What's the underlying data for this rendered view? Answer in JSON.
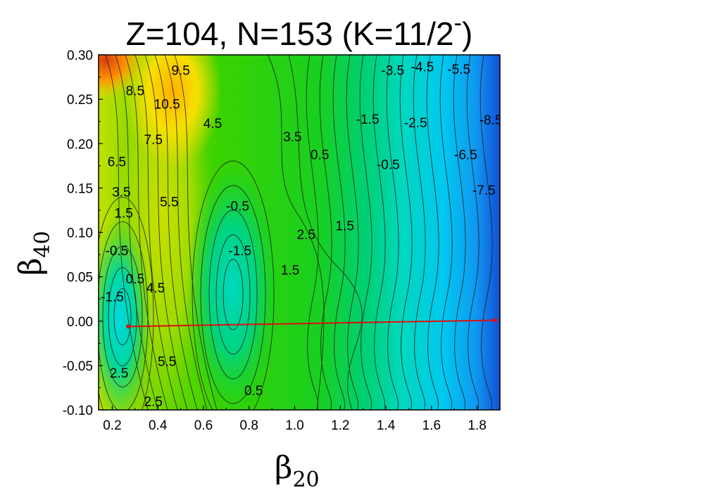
{
  "chart_data": {
    "type": "contour",
    "title": "Z=104, N=153 (K=11/2",
    "title_sup": "-",
    "title_end": ")",
    "xlabel": {
      "symbol": "β",
      "sub": "20"
    },
    "ylabel": {
      "symbol": "β",
      "sub": "40"
    },
    "xlim": [
      0.14,
      1.9
    ],
    "ylim": [
      -0.1,
      0.3
    ],
    "x_ticks": [
      0.2,
      0.4,
      0.6,
      0.8,
      1.0,
      1.2,
      1.4,
      1.6,
      1.8
    ],
    "x_tick_labels": [
      "0.2",
      "0.4",
      "0.6",
      "0.8",
      "1.0",
      "1.2",
      "1.4",
      "1.6",
      "1.8"
    ],
    "y_ticks": [
      -0.1,
      -0.05,
      0.0,
      0.05,
      0.1,
      0.15,
      0.2,
      0.25,
      0.3
    ],
    "y_tick_labels": [
      "-0.10",
      "-0.05",
      "0.00",
      "0.05",
      "0.10",
      "0.15",
      "0.20",
      "0.25",
      "0.30"
    ],
    "grid": false,
    "colorscale": [
      "#1050d8",
      "#00c8f0",
      "#00d4a0",
      "#00d010",
      "#80d800",
      "#f0e800",
      "#ff8c00",
      "#d84010"
    ],
    "contour_labels": [
      {
        "text": "9.5",
        "x": 0.5,
        "y": 0.283
      },
      {
        "text": "8.5",
        "x": 0.3,
        "y": 0.26
      },
      {
        "text": "10.5",
        "x": 0.44,
        "y": 0.245
      },
      {
        "text": "4.5",
        "x": 0.64,
        "y": 0.223
      },
      {
        "text": "7.5",
        "x": 0.38,
        "y": 0.205
      },
      {
        "text": "6.5",
        "x": 0.22,
        "y": 0.18
      },
      {
        "text": "3.5",
        "x": 0.24,
        "y": 0.146
      },
      {
        "text": "5.5",
        "x": 0.45,
        "y": 0.135
      },
      {
        "text": "1.5",
        "x": 0.25,
        "y": 0.122
      },
      {
        "text": "-0.5",
        "x": 0.75,
        "y": 0.13
      },
      {
        "text": "-0.5",
        "x": 0.22,
        "y": 0.08
      },
      {
        "text": "0.5",
        "x": 0.3,
        "y": 0.048
      },
      {
        "text": "4.5",
        "x": 0.39,
        "y": 0.038
      },
      {
        "text": "-1.5",
        "x": 0.2,
        "y": 0.028
      },
      {
        "text": "-1.5",
        "x": 0.76,
        "y": 0.08
      },
      {
        "text": "2.5",
        "x": 1.05,
        "y": 0.098
      },
      {
        "text": "1.5",
        "x": 0.98,
        "y": 0.058
      },
      {
        "text": "3.5",
        "x": 0.99,
        "y": 0.208
      },
      {
        "text": "0.5",
        "x": 1.11,
        "y": 0.188
      },
      {
        "text": "1.5",
        "x": 1.22,
        "y": 0.108
      },
      {
        "text": "-1.5",
        "x": 1.32,
        "y": 0.228
      },
      {
        "text": "-0.5",
        "x": 1.41,
        "y": 0.177
      },
      {
        "text": "-2.5",
        "x": 1.53,
        "y": 0.224
      },
      {
        "text": "-3.5",
        "x": 1.43,
        "y": 0.283
      },
      {
        "text": "-4.5",
        "x": 1.56,
        "y": 0.287
      },
      {
        "text": "-5.5",
        "x": 1.72,
        "y": 0.284
      },
      {
        "text": "-8.5",
        "x": 1.86,
        "y": 0.227
      },
      {
        "text": "-6.5",
        "x": 1.75,
        "y": 0.188
      },
      {
        "text": "-7.5",
        "x": 1.83,
        "y": 0.148
      },
      {
        "text": "2.5",
        "x": 0.23,
        "y": -0.058
      },
      {
        "text": "5.5",
        "x": 0.44,
        "y": -0.045
      },
      {
        "text": "0.5",
        "x": 0.82,
        "y": -0.078
      },
      {
        "text": "2.5",
        "x": 0.38,
        "y": -0.09
      }
    ],
    "path_line": {
      "color": "#dd1010",
      "points": [
        [
          0.27,
          -0.006
        ],
        [
          1.88,
          0.001
        ]
      ]
    }
  }
}
